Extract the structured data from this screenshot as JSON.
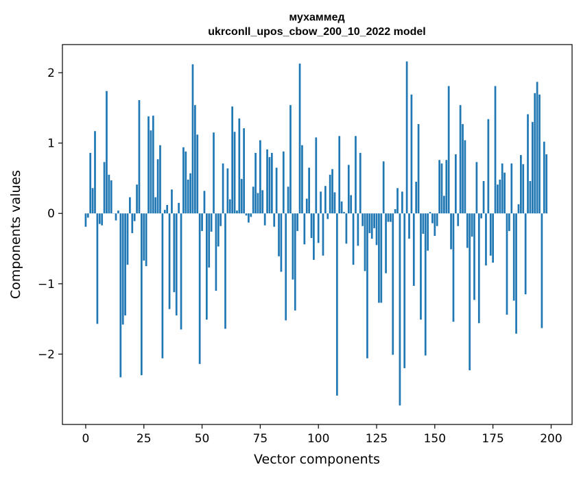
{
  "chart_data": {
    "type": "bar",
    "title_line1": "мухаммед",
    "title_line2": "ukrconll_upos_cbow_200_10_2022 model",
    "xlabel": "Vector components",
    "ylabel": "Components values",
    "xlim": [
      -10,
      209
    ],
    "ylim": [
      -3.0,
      2.4
    ],
    "xticks": [
      0,
      25,
      50,
      75,
      100,
      125,
      150,
      175,
      200
    ],
    "xtick_labels": [
      "0",
      "25",
      "50",
      "75",
      "100",
      "125",
      "150",
      "175",
      "200"
    ],
    "yticks": [
      -2,
      -1,
      0,
      1,
      2
    ],
    "ytick_labels": [
      "−2",
      "−1",
      "0",
      "1",
      "2"
    ],
    "bar_color": "#1f77b4",
    "grid": false,
    "values": [
      -0.19,
      -0.06,
      0.86,
      0.36,
      1.17,
      -1.57,
      -0.15,
      -0.17,
      0.73,
      1.74,
      0.55,
      0.47,
      0.0,
      -0.1,
      0.04,
      -2.33,
      -1.58,
      -1.45,
      -0.73,
      0.23,
      -0.28,
      -0.11,
      0.41,
      1.61,
      -2.3,
      -0.67,
      -0.75,
      1.38,
      1.18,
      1.39,
      0.23,
      0.77,
      0.97,
      -2.06,
      0.05,
      0.12,
      -1.36,
      0.34,
      -1.12,
      -1.45,
      0.15,
      -1.65,
      0.94,
      0.88,
      0.48,
      0.57,
      2.12,
      1.54,
      1.12,
      -2.14,
      -0.25,
      0.32,
      -1.51,
      -0.77,
      -0.26,
      1.15,
      -1.1,
      -0.47,
      -0.18,
      0.71,
      -1.64,
      0.64,
      0.2,
      1.52,
      1.16,
      0.04,
      1.35,
      0.49,
      1.21,
      -0.03,
      -0.13,
      -0.05,
      0.38,
      0.86,
      0.29,
      1.04,
      0.33,
      -0.17,
      0.91,
      0.8,
      0.86,
      -0.19,
      0.65,
      -0.61,
      -0.83,
      0.88,
      -1.52,
      0.38,
      1.54,
      -0.94,
      -1.38,
      -0.25,
      2.13,
      0.97,
      -0.44,
      0.21,
      0.65,
      -0.35,
      -0.66,
      1.08,
      -0.42,
      0.31,
      -0.6,
      0.39,
      -0.08,
      0.55,
      0.63,
      0.3,
      -2.59,
      1.1,
      0.17,
      0.02,
      -0.43,
      0.69,
      0.26,
      -0.73,
      1.1,
      -0.46,
      0.86,
      -0.18,
      -0.82,
      -2.06,
      -0.28,
      -0.36,
      -0.21,
      -0.45,
      -1.27,
      -1.27,
      0.74,
      -0.85,
      -0.12,
      -0.12,
      -2.01,
      0.06,
      0.36,
      -2.73,
      0.31,
      -2.2,
      2.16,
      -0.36,
      1.69,
      -1.03,
      0.45,
      1.27,
      -1.51,
      -0.29,
      -2.02,
      -0.53,
      0.02,
      -0.14,
      -0.32,
      -0.18,
      0.76,
      0.71,
      0.25,
      0.76,
      1.81,
      -0.51,
      -1.54,
      0.84,
      -0.18,
      1.54,
      1.27,
      1.04,
      -0.49,
      -2.23,
      -0.33,
      -1.23,
      0.73,
      -1.56,
      -0.07,
      0.46,
      -0.74,
      1.34,
      -0.6,
      -0.7,
      1.81,
      0.41,
      0.48,
      0.71,
      0.58,
      -1.44,
      -0.25,
      0.71,
      -1.24,
      -1.71,
      0.13,
      0.83,
      0.7,
      -1.15,
      1.41,
      0.46,
      1.3,
      1.71,
      1.87,
      1.69,
      -1.63,
      1.02,
      0.84
    ]
  }
}
